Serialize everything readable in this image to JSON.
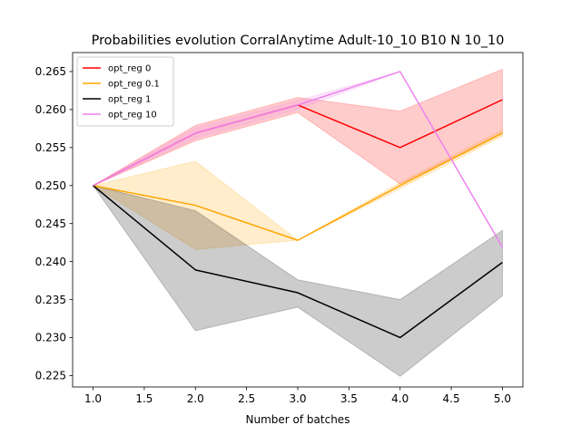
{
  "chart_data": {
    "type": "line",
    "title": "Probabilities evolution CorralAnytime Adult-10_10 B10 N 10_10",
    "xlabel": "Number of batches",
    "ylabel": "",
    "xlim": [
      0.8,
      5.2
    ],
    "ylim": [
      0.2235,
      0.2675
    ],
    "x_ticks": [
      "1.0",
      "1.5",
      "2.0",
      "2.5",
      "3.0",
      "3.5",
      "4.0",
      "4.5",
      "5.0"
    ],
    "y_ticks": [
      "0.225",
      "0.230",
      "0.235",
      "0.240",
      "0.245",
      "0.250",
      "0.255",
      "0.260",
      "0.265"
    ],
    "grid": false,
    "legend_position": "top-left",
    "x": [
      1,
      2,
      3,
      4,
      5
    ],
    "series": [
      {
        "name": "opt_reg 0",
        "color": "#ff0000",
        "values": [
          0.25,
          0.2569,
          0.2606,
          0.255,
          0.2613
        ],
        "lower": [
          0.25,
          0.2559,
          0.2596,
          0.2502,
          0.2569
        ],
        "upper": [
          0.25,
          0.2579,
          0.2616,
          0.2598,
          0.2653
        ]
      },
      {
        "name": "opt_reg 0.1",
        "color": "#ffa500",
        "values": [
          0.25,
          0.2474,
          0.2428,
          0.25,
          0.2569
        ],
        "lower": [
          0.25,
          0.2416,
          0.2428,
          0.2496,
          0.2565
        ],
        "upper": [
          0.25,
          0.2532,
          0.2428,
          0.2504,
          0.2573
        ]
      },
      {
        "name": "opt_reg 1",
        "color": "#000000",
        "values": [
          0.25,
          0.2389,
          0.2359,
          0.23,
          0.2399
        ],
        "lower": [
          0.25,
          0.2309,
          0.234,
          0.2249,
          0.2355
        ],
        "upper": [
          0.25,
          0.2467,
          0.2376,
          0.235,
          0.2441
        ]
      },
      {
        "name": "opt_reg 10",
        "color": "#ee82ee",
        "values": [
          0.25,
          0.2569,
          0.2606,
          0.265,
          0.2419
        ],
        "lower": [
          0.25,
          0.2562,
          0.26,
          0.265,
          0.2419
        ],
        "upper": [
          0.25,
          0.2576,
          0.2612,
          0.265,
          0.2419
        ]
      }
    ]
  }
}
